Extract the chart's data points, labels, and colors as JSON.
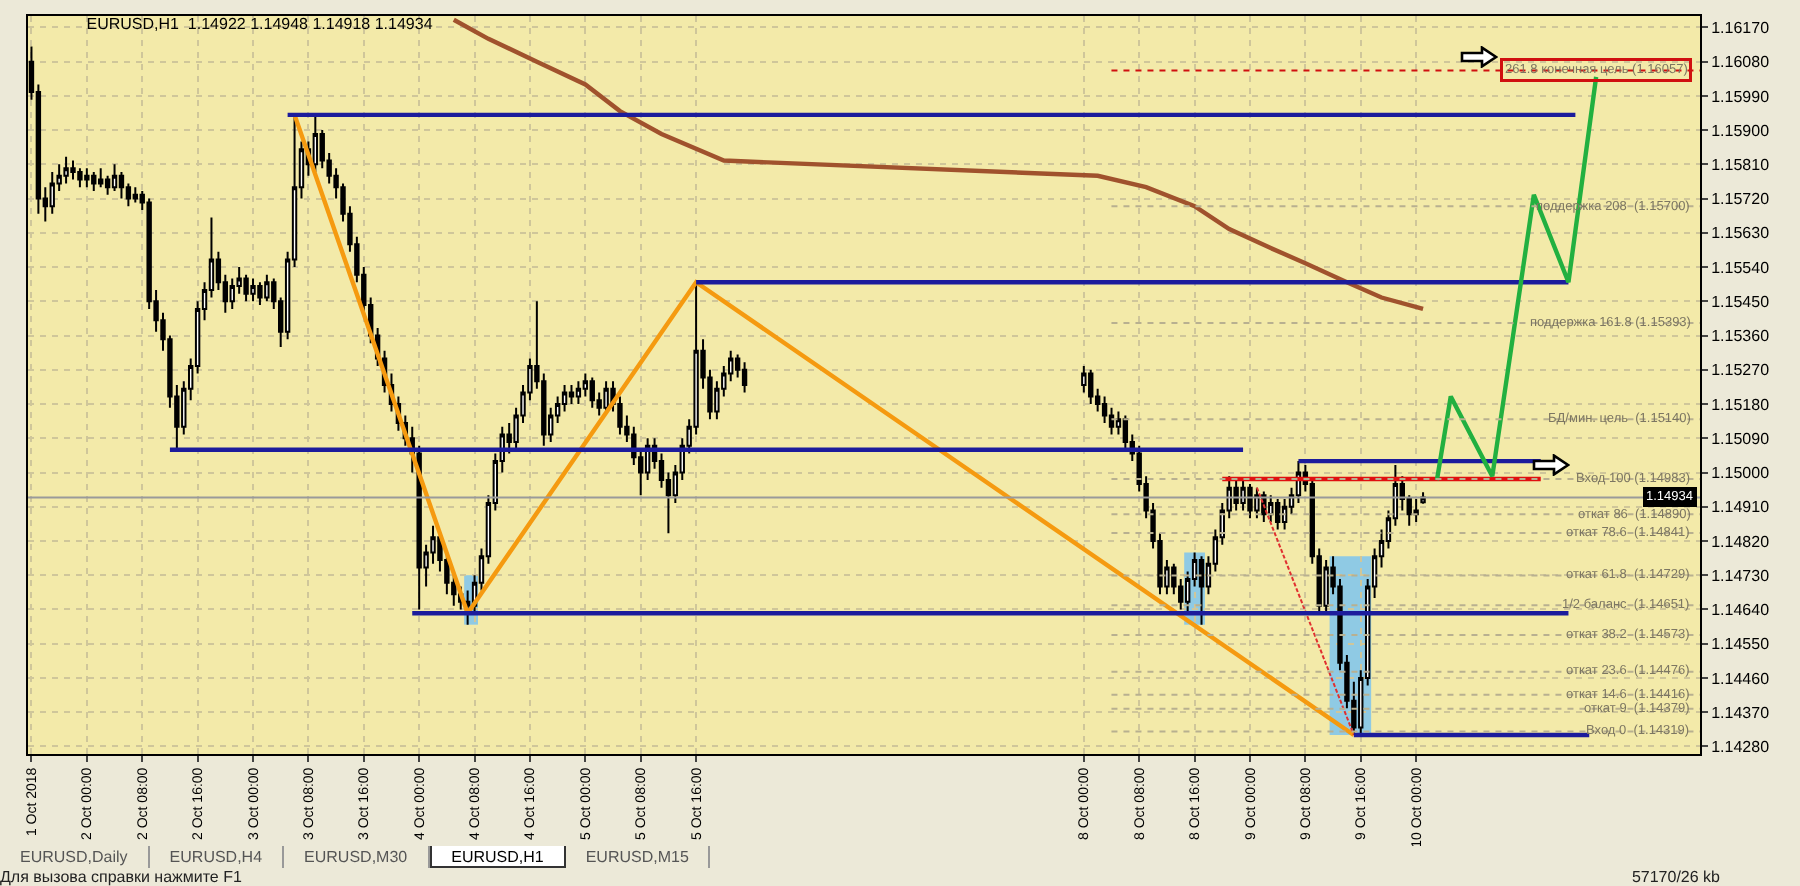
{
  "chart_data": {
    "type": "candlestick",
    "title": "EURUSD,H1  1.14922 1.14948 1.14918 1.14934",
    "x": [
      "2018-10-01T16:00",
      "2018-10-01T17:00",
      "2018-10-01T18:00",
      "2018-10-01T19:00",
      "2018-10-01T20:00",
      "2018-10-01T21:00",
      "2018-10-01T22:00",
      "2018-10-01T23:00",
      "2018-10-02T00:00",
      "2018-10-02T01:00",
      "2018-10-02T02:00",
      "2018-10-02T03:00",
      "2018-10-02T04:00",
      "2018-10-02T05:00",
      "2018-10-02T06:00",
      "2018-10-02T07:00",
      "2018-10-02T08:00",
      "2018-10-02T09:00",
      "2018-10-02T10:00",
      "2018-10-02T11:00",
      "2018-10-02T12:00",
      "2018-10-02T13:00",
      "2018-10-02T14:00",
      "2018-10-02T15:00",
      "2018-10-02T16:00",
      "2018-10-02T17:00",
      "2018-10-02T18:00",
      "2018-10-02T19:00",
      "2018-10-02T20:00",
      "2018-10-02T21:00",
      "2018-10-02T22:00",
      "2018-10-02T23:00",
      "2018-10-03T00:00",
      "2018-10-03T01:00",
      "2018-10-03T02:00",
      "2018-10-03T03:00",
      "2018-10-03T04:00",
      "2018-10-03T05:00",
      "2018-10-03T06:00",
      "2018-10-03T07:00",
      "2018-10-03T08:00",
      "2018-10-03T09:00",
      "2018-10-03T10:00",
      "2018-10-03T11:00",
      "2018-10-03T12:00",
      "2018-10-03T13:00",
      "2018-10-03T14:00",
      "2018-10-03T15:00",
      "2018-10-03T16:00",
      "2018-10-03T17:00",
      "2018-10-03T18:00",
      "2018-10-03T19:00",
      "2018-10-03T20:00",
      "2018-10-03T21:00",
      "2018-10-03T22:00",
      "2018-10-03T23:00",
      "2018-10-04T00:00",
      "2018-10-04T01:00",
      "2018-10-04T02:00",
      "2018-10-04T03:00",
      "2018-10-04T04:00",
      "2018-10-04T05:00",
      "2018-10-04T06:00",
      "2018-10-04T07:00",
      "2018-10-04T08:00",
      "2018-10-04T09:00",
      "2018-10-04T10:00",
      "2018-10-04T11:00",
      "2018-10-04T12:00",
      "2018-10-04T13:00",
      "2018-10-04T14:00",
      "2018-10-04T15:00",
      "2018-10-04T16:00",
      "2018-10-04T17:00",
      "2018-10-04T18:00",
      "2018-10-04T19:00",
      "2018-10-04T20:00",
      "2018-10-04T21:00",
      "2018-10-04T22:00",
      "2018-10-04T23:00",
      "2018-10-05T00:00",
      "2018-10-05T01:00",
      "2018-10-05T02:00",
      "2018-10-05T03:00",
      "2018-10-05T04:00",
      "2018-10-05T05:00",
      "2018-10-05T06:00",
      "2018-10-05T07:00",
      "2018-10-05T08:00",
      "2018-10-05T09:00",
      "2018-10-05T10:00",
      "2018-10-05T11:00",
      "2018-10-05T12:00",
      "2018-10-05T13:00",
      "2018-10-05T14:00",
      "2018-10-05T15:00",
      "2018-10-05T16:00",
      "2018-10-05T17:00",
      "2018-10-05T18:00",
      "2018-10-05T19:00",
      "2018-10-05T20:00",
      "2018-10-05T21:00",
      "2018-10-05T22:00",
      "2018-10-05T23:00",
      "2018-10-08T00:00",
      "2018-10-08T01:00",
      "2018-10-08T02:00",
      "2018-10-08T03:00",
      "2018-10-08T04:00",
      "2018-10-08T05:00",
      "2018-10-08T06:00",
      "2018-10-08T07:00",
      "2018-10-08T08:00",
      "2018-10-08T09:00",
      "2018-10-08T10:00",
      "2018-10-08T11:00",
      "2018-10-08T12:00",
      "2018-10-08T13:00",
      "2018-10-08T14:00",
      "2018-10-08T15:00",
      "2018-10-08T16:00",
      "2018-10-08T17:00",
      "2018-10-08T18:00",
      "2018-10-08T19:00",
      "2018-10-08T20:00",
      "2018-10-08T21:00",
      "2018-10-08T22:00",
      "2018-10-08T23:00",
      "2018-10-09T00:00",
      "2018-10-09T01:00",
      "2018-10-09T02:00",
      "2018-10-09T03:00",
      "2018-10-09T04:00",
      "2018-10-09T05:00",
      "2018-10-09T06:00",
      "2018-10-09T07:00",
      "2018-10-09T08:00",
      "2018-10-09T09:00",
      "2018-10-09T10:00",
      "2018-10-09T11:00",
      "2018-10-09T12:00",
      "2018-10-09T13:00",
      "2018-10-09T14:00",
      "2018-10-09T15:00",
      "2018-10-09T16:00",
      "2018-10-09T17:00",
      "2018-10-09T18:00",
      "2018-10-09T19:00",
      "2018-10-09T20:00",
      "2018-10-09T21:00",
      "2018-10-09T22:00",
      "2018-10-09T23:00",
      "2018-10-10T00:00",
      "2018-10-10T01:00"
    ],
    "ohlc": [
      [
        1.1608,
        1.1612,
        1.1598,
        1.16
      ],
      [
        1.16,
        1.1602,
        1.1568,
        1.1572
      ],
      [
        1.1572,
        1.1575,
        1.1566,
        1.157
      ],
      [
        1.157,
        1.1579,
        1.1568,
        1.1576
      ],
      [
        1.1576,
        1.1581,
        1.1574,
        1.1578
      ],
      [
        1.1578,
        1.1583,
        1.1576,
        1.158
      ],
      [
        1.158,
        1.1582,
        1.1577,
        1.1579
      ],
      [
        1.1579,
        1.158,
        1.1575,
        1.1577
      ],
      [
        1.1577,
        1.158,
        1.1575,
        1.1578
      ],
      [
        1.1578,
        1.1579,
        1.1574,
        1.1576
      ],
      [
        1.1576,
        1.158,
        1.1575,
        1.1577
      ],
      [
        1.1577,
        1.1578,
        1.1573,
        1.1575
      ],
      [
        1.1575,
        1.1581,
        1.1574,
        1.1578
      ],
      [
        1.1578,
        1.1579,
        1.1572,
        1.1575
      ],
      [
        1.1575,
        1.1576,
        1.157,
        1.1572
      ],
      [
        1.1572,
        1.1575,
        1.1571,
        1.1573
      ],
      [
        1.1573,
        1.1574,
        1.1569,
        1.1571
      ],
      [
        1.1571,
        1.1572,
        1.1543,
        1.1545
      ],
      [
        1.1545,
        1.1548,
        1.1537,
        1.154
      ],
      [
        1.154,
        1.1542,
        1.1532,
        1.1535
      ],
      [
        1.1535,
        1.1536,
        1.1517,
        1.152
      ],
      [
        1.152,
        1.1523,
        1.1506,
        1.1512
      ],
      [
        1.1512,
        1.1524,
        1.151,
        1.1522
      ],
      [
        1.1522,
        1.153,
        1.1519,
        1.1528
      ],
      [
        1.1528,
        1.1545,
        1.1526,
        1.1543
      ],
      [
        1.1543,
        1.155,
        1.154,
        1.1548
      ],
      [
        1.1548,
        1.1567,
        1.1546,
        1.1556
      ],
      [
        1.1556,
        1.1558,
        1.1548,
        1.155
      ],
      [
        1.155,
        1.1552,
        1.1542,
        1.1545
      ],
      [
        1.1545,
        1.1551,
        1.1543,
        1.1549
      ],
      [
        1.1549,
        1.1554,
        1.1547,
        1.1551
      ],
      [
        1.1551,
        1.1552,
        1.1545,
        1.1547
      ],
      [
        1.1547,
        1.1551,
        1.1545,
        1.1549
      ],
      [
        1.1549,
        1.155,
        1.1544,
        1.1546
      ],
      [
        1.1546,
        1.1552,
        1.1545,
        1.155
      ],
      [
        1.155,
        1.1551,
        1.1543,
        1.1545
      ],
      [
        1.1545,
        1.1546,
        1.1533,
        1.1537
      ],
      [
        1.1537,
        1.1558,
        1.1535,
        1.1556
      ],
      [
        1.1556,
        1.1594,
        1.1554,
        1.1575
      ],
      [
        1.1575,
        1.1587,
        1.1572,
        1.1585
      ],
      [
        1.1585,
        1.1587,
        1.1578,
        1.1581
      ],
      [
        1.1581,
        1.1594,
        1.1579,
        1.1589
      ],
      [
        1.1589,
        1.159,
        1.158,
        1.1582
      ],
      [
        1.1582,
        1.1584,
        1.1576,
        1.1578
      ],
      [
        1.1578,
        1.158,
        1.1572,
        1.1575
      ],
      [
        1.1575,
        1.1576,
        1.1566,
        1.1568
      ],
      [
        1.1568,
        1.157,
        1.1558,
        1.156
      ],
      [
        1.156,
        1.1562,
        1.155,
        1.1552
      ],
      [
        1.1552,
        1.1554,
        1.1542,
        1.1544
      ],
      [
        1.1544,
        1.1546,
        1.1534,
        1.1536
      ],
      [
        1.1536,
        1.1538,
        1.1528,
        1.153
      ],
      [
        1.153,
        1.1532,
        1.1521,
        1.1523
      ],
      [
        1.1523,
        1.1526,
        1.1516,
        1.1518
      ],
      [
        1.1518,
        1.152,
        1.1511,
        1.1513
      ],
      [
        1.1513,
        1.1515,
        1.1507,
        1.1509
      ],
      [
        1.1509,
        1.1512,
        1.15,
        1.1505
      ],
      [
        1.1505,
        1.1507,
        1.1464,
        1.1475
      ],
      [
        1.1475,
        1.1481,
        1.147,
        1.1479
      ],
      [
        1.1479,
        1.1486,
        1.1476,
        1.1483
      ],
      [
        1.1483,
        1.1484,
        1.1474,
        1.1477
      ],
      [
        1.1477,
        1.1479,
        1.1468,
        1.1471
      ],
      [
        1.1471,
        1.1473,
        1.1465,
        1.1468
      ],
      [
        1.1468,
        1.147,
        1.1464,
        1.1466
      ],
      [
        1.1466,
        1.1469,
        1.146,
        1.1465
      ],
      [
        1.1465,
        1.1473,
        1.1463,
        1.1471
      ],
      [
        1.1471,
        1.148,
        1.1469,
        1.1478
      ],
      [
        1.1478,
        1.1494,
        1.1476,
        1.1492
      ],
      [
        1.1492,
        1.1505,
        1.149,
        1.1503
      ],
      [
        1.1503,
        1.1512,
        1.15,
        1.151
      ],
      [
        1.151,
        1.1513,
        1.1505,
        1.1508
      ],
      [
        1.1508,
        1.1517,
        1.1506,
        1.1515
      ],
      [
        1.1515,
        1.1523,
        1.1513,
        1.1521
      ],
      [
        1.1521,
        1.153,
        1.1519,
        1.1528
      ],
      [
        1.1528,
        1.1545,
        1.1522,
        1.1524
      ],
      [
        1.1524,
        1.1526,
        1.1507,
        1.151
      ],
      [
        1.151,
        1.1517,
        1.1508,
        1.1515
      ],
      [
        1.1515,
        1.152,
        1.1513,
        1.1518
      ],
      [
        1.1518,
        1.1523,
        1.1516,
        1.1521
      ],
      [
        1.1521,
        1.1523,
        1.1518,
        1.152
      ],
      [
        1.152,
        1.1524,
        1.1518,
        1.1522
      ],
      [
        1.1522,
        1.1526,
        1.152,
        1.1524
      ],
      [
        1.1524,
        1.1525,
        1.1517,
        1.1519
      ],
      [
        1.1519,
        1.1521,
        1.1515,
        1.1517
      ],
      [
        1.1517,
        1.1524,
        1.1516,
        1.1522
      ],
      [
        1.1522,
        1.1524,
        1.1516,
        1.1518
      ],
      [
        1.1518,
        1.152,
        1.151,
        1.1512
      ],
      [
        1.1512,
        1.1515,
        1.1508,
        1.151
      ],
      [
        1.151,
        1.1512,
        1.1502,
        1.1504
      ],
      [
        1.1504,
        1.1506,
        1.1494,
        1.15
      ],
      [
        1.15,
        1.1509,
        1.1498,
        1.1507
      ],
      [
        1.1507,
        1.1509,
        1.1501,
        1.1503
      ],
      [
        1.1503,
        1.1505,
        1.1496,
        1.1498
      ],
      [
        1.1498,
        1.15,
        1.1484,
        1.1494
      ],
      [
        1.1494,
        1.1502,
        1.1492,
        1.15
      ],
      [
        1.15,
        1.1509,
        1.1498,
        1.1507
      ],
      [
        1.1507,
        1.1514,
        1.1505,
        1.1512
      ],
      [
        1.1512,
        1.155,
        1.151,
        1.1532
      ],
      [
        1.1532,
        1.1535,
        1.1522,
        1.1525
      ],
      [
        1.1525,
        1.1527,
        1.1514,
        1.1516
      ],
      [
        1.1516,
        1.1524,
        1.1514,
        1.1522
      ],
      [
        1.1522,
        1.1528,
        1.152,
        1.1526
      ],
      [
        1.1526,
        1.1532,
        1.1524,
        1.153
      ],
      [
        1.153,
        1.1531,
        1.1525,
        1.1527
      ],
      [
        1.1527,
        1.1529,
        1.1521,
        1.1523
      ],
      [
        1.1523,
        1.1528,
        1.1521,
        1.1526
      ],
      [
        1.1526,
        1.1527,
        1.1518,
        1.152
      ],
      [
        1.152,
        1.1522,
        1.1516,
        1.1518
      ],
      [
        1.1518,
        1.152,
        1.1513,
        1.1515
      ],
      [
        1.1515,
        1.1517,
        1.151,
        1.1512
      ],
      [
        1.1512,
        1.1516,
        1.151,
        1.1514
      ],
      [
        1.1514,
        1.1515,
        1.1506,
        1.1508
      ],
      [
        1.1508,
        1.151,
        1.1503,
        1.1505
      ],
      [
        1.1505,
        1.1507,
        1.1495,
        1.1497
      ],
      [
        1.1497,
        1.1499,
        1.1488,
        1.149
      ],
      [
        1.149,
        1.1492,
        1.148,
        1.1482
      ],
      [
        1.1482,
        1.1484,
        1.1468,
        1.147
      ],
      [
        1.147,
        1.1477,
        1.1468,
        1.1475
      ],
      [
        1.1475,
        1.1476,
        1.1468,
        1.147
      ],
      [
        1.147,
        1.1472,
        1.1464,
        1.1466
      ],
      [
        1.1466,
        1.1474,
        1.1463,
        1.1472
      ],
      [
        1.1472,
        1.1479,
        1.147,
        1.1477
      ],
      [
        1.1477,
        1.1478,
        1.146,
        1.147
      ],
      [
        1.147,
        1.1478,
        1.1468,
        1.1476
      ],
      [
        1.1476,
        1.1485,
        1.1474,
        1.1483
      ],
      [
        1.1483,
        1.1492,
        1.1481,
        1.149
      ],
      [
        1.149,
        1.1499,
        1.1488,
        1.1496
      ],
      [
        1.1496,
        1.1498,
        1.149,
        1.1492
      ],
      [
        1.1492,
        1.1498,
        1.149,
        1.1496
      ],
      [
        1.1496,
        1.1497,
        1.1488,
        1.149
      ],
      [
        1.149,
        1.1496,
        1.1488,
        1.1494
      ],
      [
        1.1494,
        1.1495,
        1.1487,
        1.1489
      ],
      [
        1.1489,
        1.1494,
        1.1487,
        1.1492
      ],
      [
        1.1492,
        1.1493,
        1.1485,
        1.1487
      ],
      [
        1.1487,
        1.1493,
        1.1485,
        1.1491
      ],
      [
        1.1491,
        1.1496,
        1.1489,
        1.1494
      ],
      [
        1.1494,
        1.1503,
        1.1492,
        1.15
      ],
      [
        1.15,
        1.1502,
        1.1495,
        1.1497
      ],
      [
        1.1497,
        1.1498,
        1.1476,
        1.1478
      ],
      [
        1.1478,
        1.148,
        1.1463,
        1.1465
      ],
      [
        1.1465,
        1.1477,
        1.1463,
        1.1475
      ],
      [
        1.1475,
        1.1478,
        1.1468,
        1.147
      ],
      [
        1.147,
        1.1472,
        1.1448,
        1.145
      ],
      [
        1.145,
        1.1452,
        1.1438,
        1.144
      ],
      [
        1.144,
        1.1445,
        1.1431,
        1.1433
      ],
      [
        1.1433,
        1.1448,
        1.1431,
        1.1446
      ],
      [
        1.1446,
        1.1472,
        1.1444,
        1.147
      ],
      [
        1.147,
        1.148,
        1.1467,
        1.1478
      ],
      [
        1.1478,
        1.1485,
        1.1475,
        1.1482
      ],
      [
        1.1482,
        1.149,
        1.148,
        1.1488
      ],
      [
        1.1488,
        1.1502,
        1.1486,
        1.1497
      ],
      [
        1.1497,
        1.1499,
        1.149,
        1.1493
      ],
      [
        1.1493,
        1.1494,
        1.1486,
        1.1489
      ],
      [
        1.1489,
        1.1493,
        1.1487,
        1.149
      ],
      [
        1.14922,
        1.14948,
        1.14918,
        1.14934
      ]
    ],
    "series": [
      {
        "type": "line",
        "color": "#a0522d",
        "x": [
          "2018-10-04T05:00",
          "2018-10-04T10:00",
          "2018-10-04T17:00",
          "2018-10-05T00:00",
          "2018-10-05T05:00",
          "2018-10-05T11:00",
          "2018-10-05T20:00",
          "2018-10-08T02:00",
          "2018-10-08T09:00",
          "2018-10-08T16:00",
          "2018-10-08T21:00",
          "2018-10-09T03:00",
          "2018-10-09T08:00",
          "2018-10-09T14:00",
          "2018-10-09T19:00",
          "2018-10-10T01:00"
        ],
        "values": [
          1.1619,
          1.1614,
          1.1608,
          1.1602,
          1.1595,
          1.1589,
          1.1582,
          1.1578,
          1.1575,
          1.157,
          1.1564,
          1.1559,
          1.1555,
          1.155,
          1.1546,
          1.1543
        ]
      },
      {
        "type": "line",
        "color": "#f59a10",
        "x": [
          "2018-10-03T06:00",
          "2018-10-04T07:00",
          "2018-10-05T16:00",
          "2018-10-09T15:00"
        ],
        "values": [
          1.1594,
          1.1463,
          1.155,
          1.1431
        ]
      },
      {
        "type": "line",
        "color": "#e03030",
        "line_style": "dotted",
        "x": [
          "2018-10-09T01:00",
          "2018-10-09T15:00"
        ],
        "values": [
          1.1496,
          1.1431
        ]
      },
      {
        "type": "line",
        "color": "#1c1c9c",
        "x": [
          "2018-10-03T05:00",
          "2018-10-10T23:00"
        ],
        "values": [
          1.1594,
          1.1594
        ]
      },
      {
        "type": "line",
        "color": "#1c1c9c",
        "x": [
          "2018-10-05T16:00",
          "2018-10-10T22:00"
        ],
        "values": [
          1.155,
          1.155
        ]
      },
      {
        "type": "line",
        "color": "#1c1c9c",
        "x": [
          "2018-10-02T12:00",
          "2018-10-08T23:00"
        ],
        "values": [
          1.1506,
          1.1506
        ]
      },
      {
        "type": "line",
        "color": "#1c1c9c",
        "x": [
          "2018-10-09T07:00",
          "2018-10-10T18:00"
        ],
        "values": [
          1.1503,
          1.1503
        ]
      },
      {
        "type": "line",
        "color": "#1c1c9c",
        "x": [
          "2018-10-03T23:00",
          "2018-10-10T22:00"
        ],
        "values": [
          1.1463,
          1.1463
        ]
      },
      {
        "type": "line",
        "color": "#1c1c9c",
        "x": [
          "2018-10-09T15:00",
          "2018-10-11T01:00"
        ],
        "values": [
          1.1431,
          1.1431
        ]
      },
      {
        "type": "line",
        "color": "#e01010",
        "x": [
          "2018-10-08T20:00",
          "2018-10-10T18:00"
        ],
        "values": [
          1.14983,
          1.14983
        ]
      },
      {
        "type": "line",
        "color": "#22b040",
        "x": [
          "2018-10-10T03:00",
          "2018-10-10T05:00",
          "2018-10-10T11:00",
          "2018-10-10T17:00",
          "2018-10-10T22:00",
          "2018-10-11T02:00"
        ],
        "values": [
          1.1498,
          1.152,
          1.1499,
          1.1573,
          1.155,
          1.1604
        ]
      }
    ],
    "xlim": [
      "2018-10-01T15:30",
      "2018-10-11T17:00"
    ],
    "xticks": [
      {
        "value": "2018-10-01T16:00",
        "label": "1 Oct 2018"
      },
      {
        "value": "2018-10-02T00:00",
        "label": "2 Oct 00:00"
      },
      {
        "value": "2018-10-02T08:00",
        "label": "2 Oct 08:00"
      },
      {
        "value": "2018-10-02T16:00",
        "label": "2 Oct 16:00"
      },
      {
        "value": "2018-10-03T00:00",
        "label": "3 Oct 00:00"
      },
      {
        "value": "2018-10-03T08:00",
        "label": "3 Oct 08:00"
      },
      {
        "value": "2018-10-03T16:00",
        "label": "3 Oct 16:00"
      },
      {
        "value": "2018-10-04T00:00",
        "label": "4 Oct 00:00"
      },
      {
        "value": "2018-10-04T08:00",
        "label": "4 Oct 08:00"
      },
      {
        "value": "2018-10-04T16:00",
        "label": "4 Oct 16:00"
      },
      {
        "value": "2018-10-05T00:00",
        "label": "5 Oct 00:00"
      },
      {
        "value": "2018-10-05T08:00",
        "label": "5 Oct 08:00"
      },
      {
        "value": "2018-10-05T16:00",
        "label": "5 Oct 16:00"
      },
      {
        "value": "2018-10-08T00:00",
        "label": "8 Oct 00:00"
      },
      {
        "value": "2018-10-08T08:00",
        "label": "8 Oct 08:00"
      },
      {
        "value": "2018-10-08T16:00",
        "label": "8 Oct 16:00"
      },
      {
        "value": "2018-10-09T00:00",
        "label": "9 Oct 00:00"
      },
      {
        "value": "2018-10-09T08:00",
        "label": "9 Oct 08:00"
      },
      {
        "value": "2018-10-09T16:00",
        "label": "9 Oct 16:00"
      },
      {
        "value": "2018-10-10T00:00",
        "label": "10 Oct 00:00"
      }
    ],
    "ylim": [
      1.1426,
      1.162
    ],
    "yticks": [
      {
        "value": 1.1617,
        "label": "1.16170"
      },
      {
        "value": 1.1608,
        "label": "1.16080"
      },
      {
        "value": 1.1599,
        "label": "1.15990"
      },
      {
        "value": 1.159,
        "label": "1.15900"
      },
      {
        "value": 1.1581,
        "label": "1.15810"
      },
      {
        "value": 1.1572,
        "label": "1.15720"
      },
      {
        "value": 1.1563,
        "label": "1.15630"
      },
      {
        "value": 1.1554,
        "label": "1.15540"
      },
      {
        "value": 1.1545,
        "label": "1.15450"
      },
      {
        "value": 1.1536,
        "label": "1.15360"
      },
      {
        "value": 1.1527,
        "label": "1.15270"
      },
      {
        "value": 1.1518,
        "label": "1.15180"
      },
      {
        "value": 1.1509,
        "label": "1.15090"
      },
      {
        "value": 1.15,
        "label": "1.15000"
      },
      {
        "value": 1.1491,
        "label": "1.14910"
      },
      {
        "value": 1.1482,
        "label": "1.14820"
      },
      {
        "value": 1.1473,
        "label": "1.14730"
      },
      {
        "value": 1.1464,
        "label": "1.14640"
      },
      {
        "value": 1.1455,
        "label": "1.14550"
      },
      {
        "value": 1.1446,
        "label": "1.14460"
      },
      {
        "value": 1.1437,
        "label": "1.14370"
      },
      {
        "value": 1.1428,
        "label": "1.14280"
      }
    ],
    "grid": true,
    "ref_lines": [
      {
        "axis": "y",
        "value": 1.16057,
        "label": "261.8 конечная цель (1.16057)",
        "color": "#d01010",
        "line_style": "dotted"
      },
      {
        "axis": "y",
        "value": 1.157,
        "label": "поддержка 208  (1.15700)",
        "line_style": "dotted"
      },
      {
        "axis": "y",
        "value": 1.15393,
        "label": "поддержка 161.8 (1.15393)",
        "line_style": "dotted"
      },
      {
        "axis": "y",
        "value": 1.1514,
        "label": "БД/мин. цель  (1.15140)",
        "line_style": "dotted"
      },
      {
        "axis": "y",
        "value": 1.14983,
        "label": "Вход 100 (1.14983)",
        "line_style": "dotted"
      },
      {
        "axis": "y",
        "value": 1.1489,
        "label": "откат 86  (1.14890)",
        "line_style": "dotted"
      },
      {
        "axis": "y",
        "value": 1.14841,
        "label": "откат 78.6  (1.14841)",
        "line_style": "dotted"
      },
      {
        "axis": "y",
        "value": 1.14729,
        "label": "откат 61.8  (1.14729)",
        "line_style": "dotted"
      },
      {
        "axis": "y",
        "value": 1.14651,
        "label": "1/2 баланс  (1.14651)",
        "line_style": "dotted"
      },
      {
        "axis": "y",
        "value": 1.14573,
        "label": "откат 38.2  (1.14573)",
        "line_style": "dotted"
      },
      {
        "axis": "y",
        "value": 1.14476,
        "label": "откат 23.6  (1.14476)",
        "line_style": "dotted"
      },
      {
        "axis": "y",
        "value": 1.14416,
        "label": "откат 14.6  (1.14416)",
        "line_style": "dotted"
      },
      {
        "axis": "y",
        "value": 1.14379,
        "label": "откат 9  (1.14379)",
        "line_style": "dotted"
      },
      {
        "axis": "y",
        "value": 1.14319,
        "label": "Вход 0  (1.14319)",
        "line_style": "dotted"
      },
      {
        "axis": "y",
        "value": 1.14934,
        "label": "1.14934",
        "color": "#9a9a9a",
        "line_style": "solid"
      }
    ],
    "annotations": [
      "EURUSD,Daily",
      "EURUSD,H4",
      "EURUSD,M30",
      "EURUSD,H1",
      "EURUSD,M15",
      "Для вызова справки нажмите F1",
      "57170/26 kb"
    ]
  }
}
